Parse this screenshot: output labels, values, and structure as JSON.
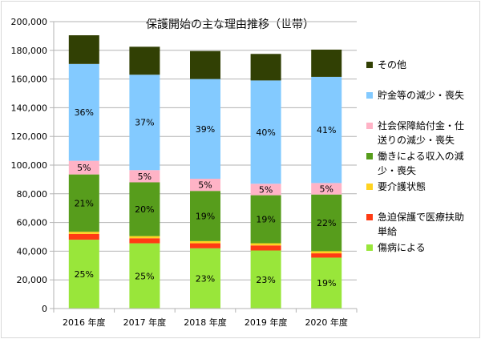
{
  "chart_data": {
    "type": "bar",
    "stacked": true,
    "title": "保護開始の主な理由推移（世帯）",
    "categories": [
      "2016 年度",
      "2017 年度",
      "2018 年度",
      "2019 年度",
      "2020 年度"
    ],
    "ylim": [
      0,
      200000
    ],
    "yticks": [
      0,
      20000,
      40000,
      60000,
      80000,
      100000,
      120000,
      140000,
      160000,
      180000,
      200000
    ],
    "ytick_labels": [
      "0",
      "20,000",
      "40,000",
      "60,000",
      "80,000",
      "100,000",
      "120,000",
      "140,000",
      "160,000",
      "180,000",
      "200,000"
    ],
    "grid": true,
    "legend_position": "right",
    "series": [
      {
        "name": "傷病による",
        "color": "#99e63a",
        "values": [
          48000,
          45500,
          42000,
          40500,
          35500
        ],
        "labels": [
          "25%",
          "25%",
          "23%",
          "23%",
          "19%"
        ]
      },
      {
        "name": "急迫保護で医療扶助単給",
        "color": "#ff3b14",
        "values": [
          4000,
          3500,
          3500,
          3500,
          3000
        ],
        "labels": [
          "",
          "",
          "",
          "",
          ""
        ]
      },
      {
        "name": "要介護状態",
        "color": "#ffd320",
        "values": [
          1500,
          1500,
          1500,
          1500,
          1500
        ],
        "labels": [
          "",
          "",
          "",
          "",
          ""
        ]
      },
      {
        "name": "働きによる収入の減少・喪失",
        "color": "#579d1c",
        "values": [
          40000,
          37500,
          35000,
          33500,
          39500
        ],
        "labels": [
          "21%",
          "20%",
          "19%",
          "19%",
          "22%"
        ]
      },
      {
        "name": "社会保障給付金・仕送りの減少・喪失",
        "color": "#ffb3c6",
        "values": [
          9500,
          8500,
          8500,
          8000,
          8000
        ],
        "labels": [
          "5%",
          "5%",
          "5%",
          "5%",
          "5%"
        ]
      },
      {
        "name": "貯金等の減少・喪失",
        "color": "#83caff",
        "values": [
          67500,
          66500,
          69500,
          72000,
          74000
        ],
        "labels": [
          "36%",
          "37%",
          "39%",
          "40%",
          "41%"
        ]
      },
      {
        "name": "その他",
        "color": "#314004",
        "values": [
          20000,
          19500,
          19500,
          18500,
          19000
        ],
        "labels": [
          "",
          "",
          "",
          "",
          ""
        ]
      }
    ],
    "legend_order": [
      6,
      5,
      4,
      3,
      2,
      1,
      0
    ],
    "legend_lines": [
      [
        "その他"
      ],
      [
        "貯金等の減少・喪失"
      ],
      [
        "社会保障給付金・仕",
        "送りの減少・喪失"
      ],
      [
        "働きによる収入の減",
        "少・喪失"
      ],
      [
        "要介護状態"
      ],
      [
        "急迫保護で医療扶助",
        "単給"
      ],
      [
        "傷病による"
      ]
    ]
  },
  "colors": {
    "grid": "#b3b3b3",
    "axis": "#b3b3b3",
    "text": "#000000",
    "border": "#d9d9d9"
  }
}
